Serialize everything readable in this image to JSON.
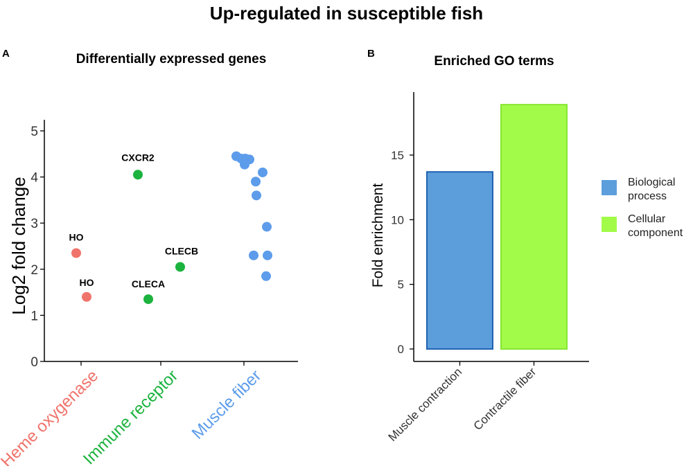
{
  "figure": {
    "title": "Up-regulated in susceptible fish"
  },
  "chart_data": [
    {
      "panel": "A",
      "type": "scatter",
      "title": "Differentially expressed genes",
      "xlabel": "",
      "ylabel": "Log2 fold change",
      "ylim": [
        0,
        5
      ],
      "yticks": [
        0,
        1,
        2,
        3,
        4,
        5
      ],
      "categories": [
        "Heme oxygenase",
        "Immune receptor",
        "Muscle fiber"
      ],
      "category_colors": [
        "#F0736B",
        "#1CB33E",
        "#5C9CEB"
      ],
      "points": [
        {
          "category": "Heme oxygenase",
          "y": 2.35,
          "label": "HO"
        },
        {
          "category": "Heme oxygenase",
          "y": 1.4,
          "label": "HO"
        },
        {
          "category": "Immune receptor",
          "y": 4.05,
          "label": "CXCR2"
        },
        {
          "category": "Immune receptor",
          "y": 2.05,
          "label": "CLECB"
        },
        {
          "category": "Immune receptor",
          "y": 1.35,
          "label": "CLECA"
        },
        {
          "category": "Muscle fiber",
          "y": 4.45
        },
        {
          "category": "Muscle fiber",
          "y": 4.4
        },
        {
          "category": "Muscle fiber",
          "y": 4.38
        },
        {
          "category": "Muscle fiber",
          "y": 4.4
        },
        {
          "category": "Muscle fiber",
          "y": 4.27
        },
        {
          "category": "Muscle fiber",
          "y": 4.1
        },
        {
          "category": "Muscle fiber",
          "y": 3.9
        },
        {
          "category": "Muscle fiber",
          "y": 3.6
        },
        {
          "category": "Muscle fiber",
          "y": 2.92
        },
        {
          "category": "Muscle fiber",
          "y": 2.3
        },
        {
          "category": "Muscle fiber",
          "y": 2.3
        },
        {
          "category": "Muscle fiber",
          "y": 1.85
        }
      ],
      "grid": false
    },
    {
      "panel": "B",
      "type": "bar",
      "title": "Enriched GO terms",
      "xlabel": "",
      "ylabel": "Fold enrichment",
      "ylim": [
        0,
        19.5
      ],
      "yticks": [
        0,
        5,
        10,
        15
      ],
      "categories": [
        "Muscle contraction",
        "Contractile fiber"
      ],
      "values": [
        13.7,
        18.9
      ],
      "bar_groups": [
        "Biological process",
        "Cellular component"
      ],
      "legend": {
        "placement": "right",
        "entries": [
          {
            "label_line1": "Biological",
            "label_line2": "process",
            "fill": "#5C9EDC",
            "stroke": "#1F62B0"
          },
          {
            "label_line1": "Cellular",
            "label_line2": "component",
            "fill": "#A2FB49",
            "stroke": "#86E632"
          }
        ]
      },
      "grid": false
    }
  ]
}
